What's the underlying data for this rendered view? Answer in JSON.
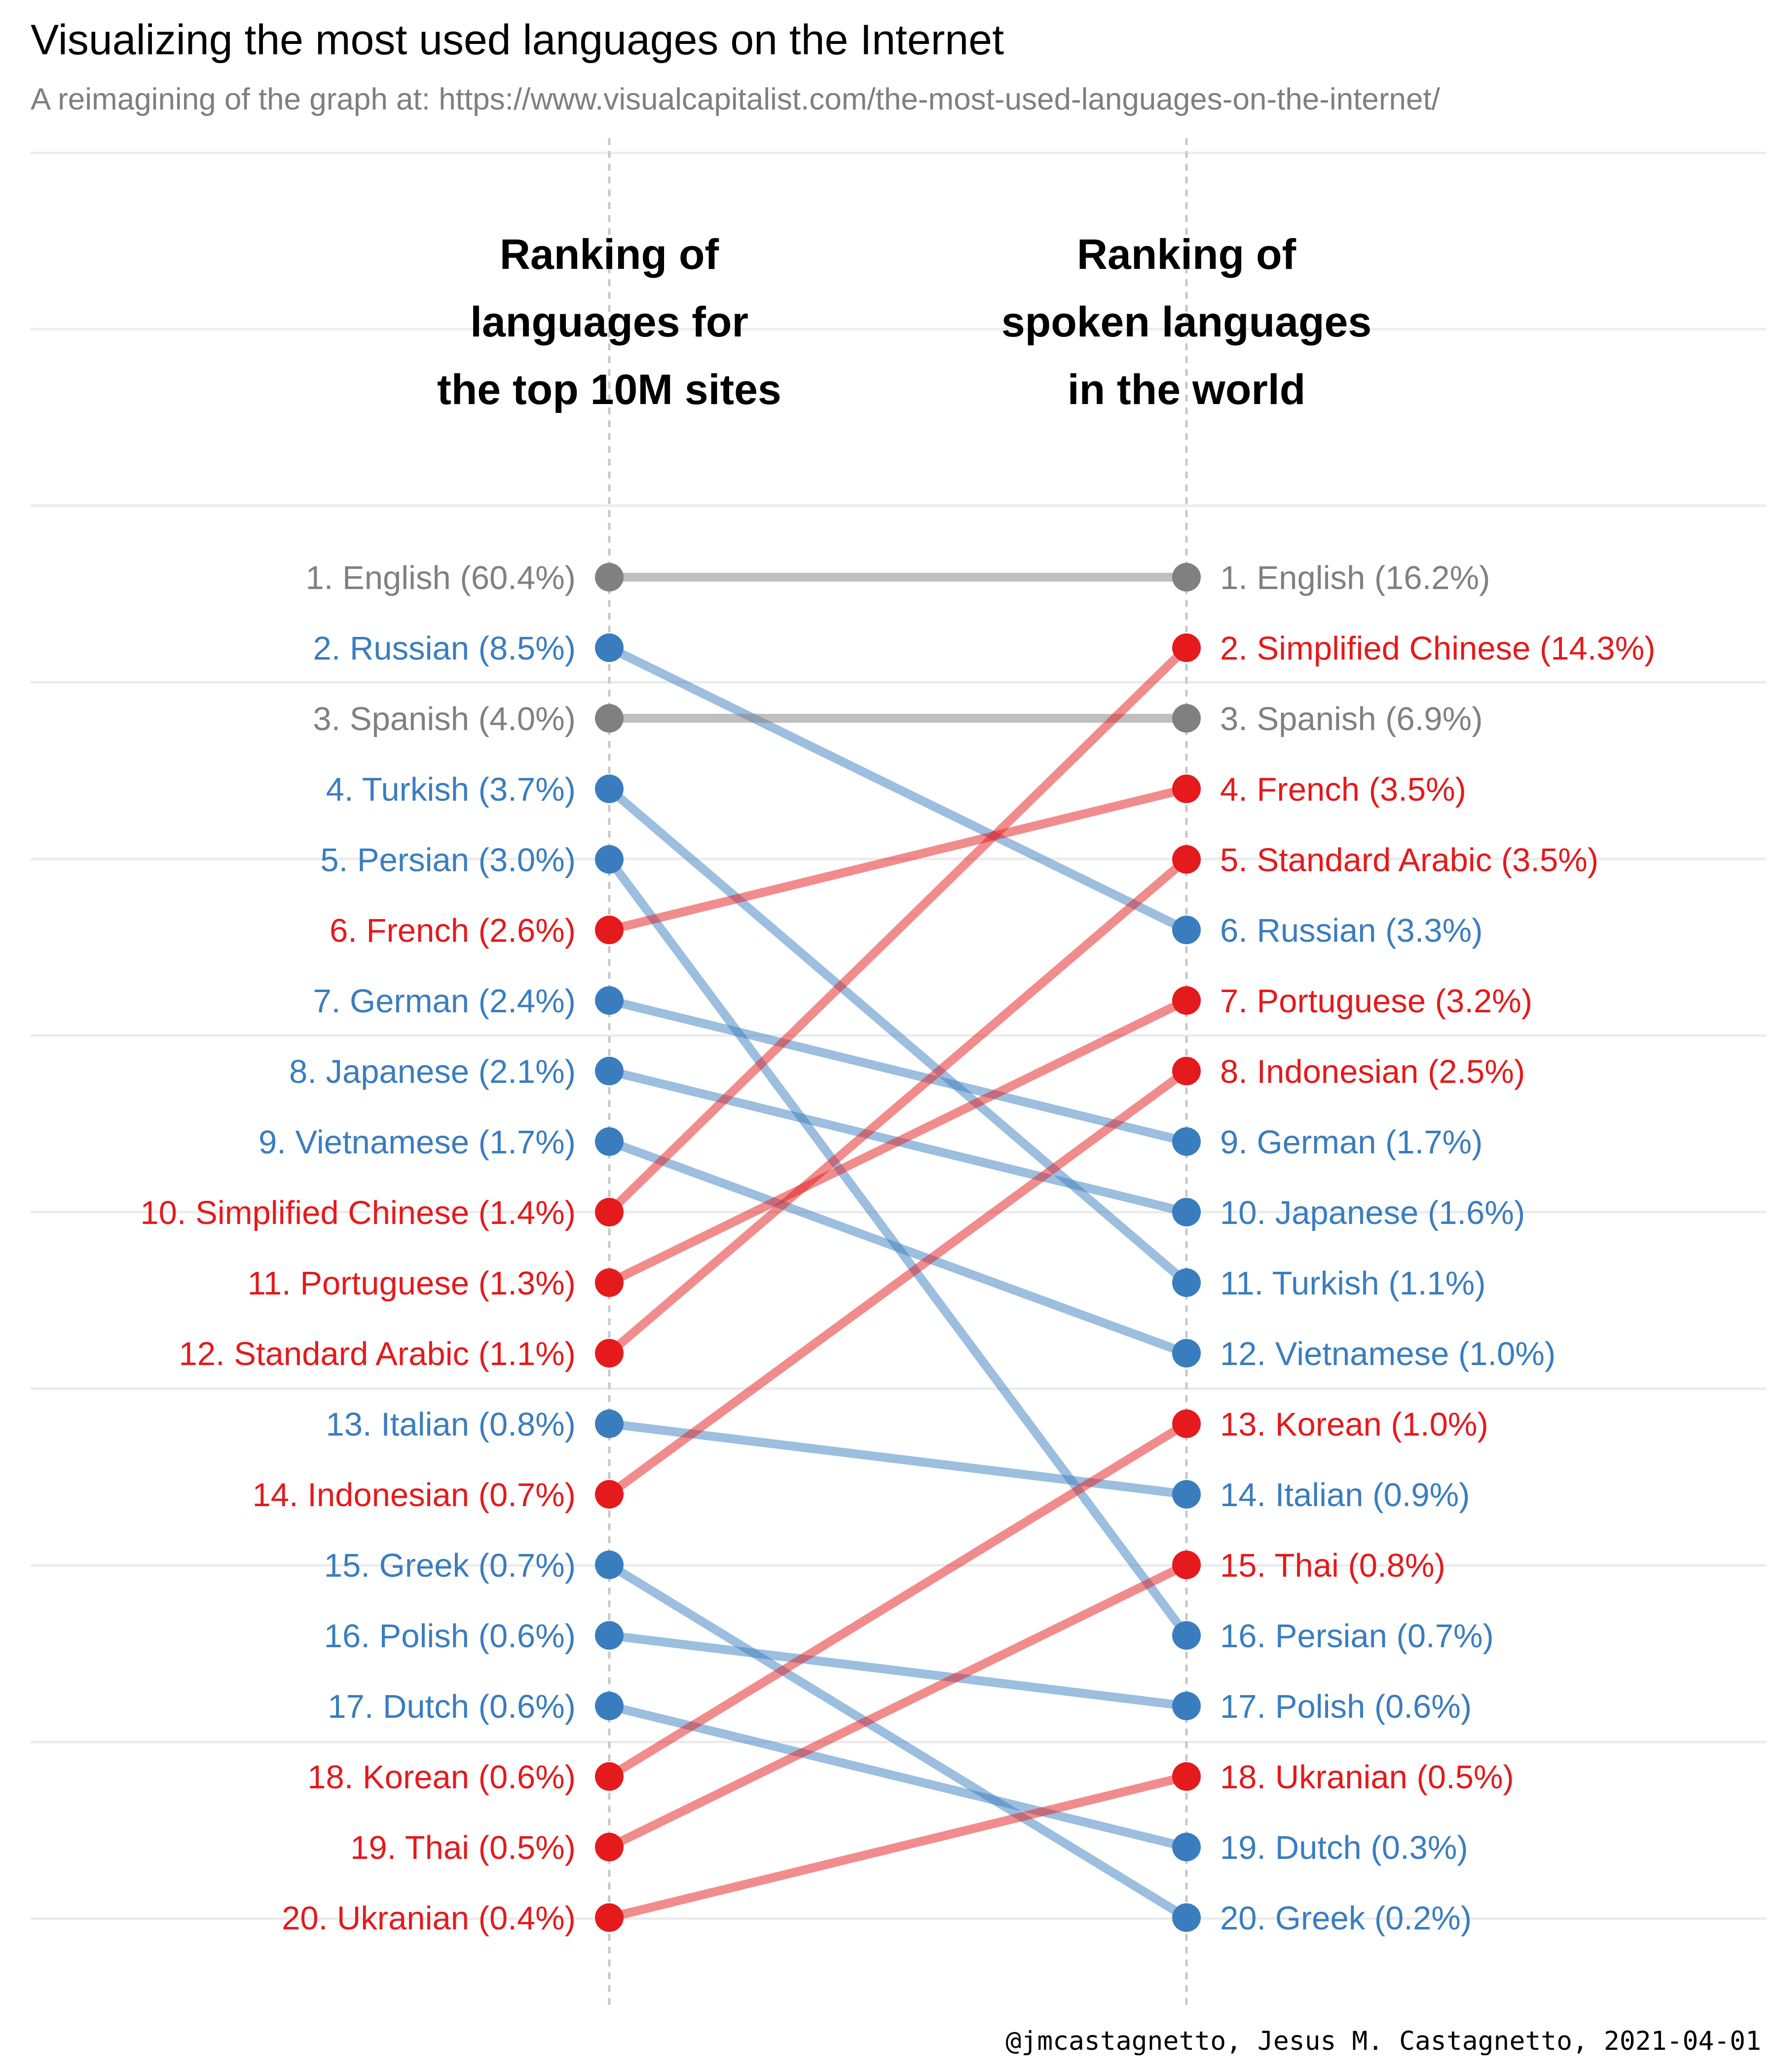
{
  "title": "Visualizing the most used languages on the Internet",
  "subtitle": "A reimagining of the graph at: https://www.visualcapitalist.com/the-most-used-languages-on-the-internet/",
  "caption": "@jmcastagnetto, Jesus M. Castagnetto, 2021-04-01",
  "colors": {
    "same": "#808080",
    "web_higher": "#3a7dbf",
    "spoken_higher": "#e41a1c",
    "grid": "#ebebeb"
  },
  "chart_data": {
    "type": "slope",
    "columns": [
      {
        "header": [
          "Ranking of",
          "languages for",
          "the top 10M sites"
        ]
      },
      {
        "header": [
          "Ranking of",
          "spoken languages",
          "in the world"
        ]
      }
    ],
    "left": [
      {
        "rank": 1,
        "language": "English",
        "pct": 60.4,
        "label": "1. English (60.4%)",
        "group": "same"
      },
      {
        "rank": 2,
        "language": "Russian",
        "pct": 8.5,
        "label": "2. Russian (8.5%)",
        "group": "web_higher"
      },
      {
        "rank": 3,
        "language": "Spanish",
        "pct": 4.0,
        "label": "3. Spanish (4.0%)",
        "group": "same"
      },
      {
        "rank": 4,
        "language": "Turkish",
        "pct": 3.7,
        "label": "4. Turkish (3.7%)",
        "group": "web_higher"
      },
      {
        "rank": 5,
        "language": "Persian",
        "pct": 3.0,
        "label": "5. Persian (3.0%)",
        "group": "web_higher"
      },
      {
        "rank": 6,
        "language": "French",
        "pct": 2.6,
        "label": "6. French (2.6%)",
        "group": "spoken_higher"
      },
      {
        "rank": 7,
        "language": "German",
        "pct": 2.4,
        "label": "7. German (2.4%)",
        "group": "web_higher"
      },
      {
        "rank": 8,
        "language": "Japanese",
        "pct": 2.1,
        "label": "8. Japanese (2.1%)",
        "group": "web_higher"
      },
      {
        "rank": 9,
        "language": "Vietnamese",
        "pct": 1.7,
        "label": "9. Vietnamese (1.7%)",
        "group": "web_higher"
      },
      {
        "rank": 10,
        "language": "Simplified Chinese",
        "pct": 1.4,
        "label": "10. Simplified Chinese (1.4%)",
        "group": "spoken_higher"
      },
      {
        "rank": 11,
        "language": "Portuguese",
        "pct": 1.3,
        "label": "11. Portuguese (1.3%)",
        "group": "spoken_higher"
      },
      {
        "rank": 12,
        "language": "Standard Arabic",
        "pct": 1.1,
        "label": "12. Standard Arabic (1.1%)",
        "group": "spoken_higher"
      },
      {
        "rank": 13,
        "language": "Italian",
        "pct": 0.8,
        "label": "13. Italian (0.8%)",
        "group": "web_higher"
      },
      {
        "rank": 14,
        "language": "Indonesian",
        "pct": 0.7,
        "label": "14. Indonesian (0.7%)",
        "group": "spoken_higher"
      },
      {
        "rank": 15,
        "language": "Greek",
        "pct": 0.7,
        "label": "15. Greek (0.7%)",
        "group": "web_higher"
      },
      {
        "rank": 16,
        "language": "Polish",
        "pct": 0.6,
        "label": "16. Polish (0.6%)",
        "group": "web_higher"
      },
      {
        "rank": 17,
        "language": "Dutch",
        "pct": 0.6,
        "label": "17. Dutch (0.6%)",
        "group": "web_higher"
      },
      {
        "rank": 18,
        "language": "Korean",
        "pct": 0.6,
        "label": "18. Korean (0.6%)",
        "group": "spoken_higher"
      },
      {
        "rank": 19,
        "language": "Thai",
        "pct": 0.5,
        "label": "19. Thai (0.5%)",
        "group": "spoken_higher"
      },
      {
        "rank": 20,
        "language": "Ukranian",
        "pct": 0.4,
        "label": "20. Ukranian (0.4%)",
        "group": "spoken_higher"
      }
    ],
    "right": [
      {
        "rank": 1,
        "language": "English",
        "pct": 16.2,
        "label": "1. English (16.2%)",
        "group": "same"
      },
      {
        "rank": 2,
        "language": "Simplified Chinese",
        "pct": 14.3,
        "label": "2. Simplified Chinese (14.3%)",
        "group": "spoken_higher"
      },
      {
        "rank": 3,
        "language": "Spanish",
        "pct": 6.9,
        "label": "3. Spanish (6.9%)",
        "group": "same"
      },
      {
        "rank": 4,
        "language": "French",
        "pct": 3.5,
        "label": "4. French (3.5%)",
        "group": "spoken_higher"
      },
      {
        "rank": 5,
        "language": "Standard Arabic",
        "pct": 3.5,
        "label": "5. Standard Arabic (3.5%)",
        "group": "spoken_higher"
      },
      {
        "rank": 6,
        "language": "Russian",
        "pct": 3.3,
        "label": "6. Russian (3.3%)",
        "group": "web_higher"
      },
      {
        "rank": 7,
        "language": "Portuguese",
        "pct": 3.2,
        "label": "7. Portuguese (3.2%)",
        "group": "spoken_higher"
      },
      {
        "rank": 8,
        "language": "Indonesian",
        "pct": 2.5,
        "label": "8. Indonesian (2.5%)",
        "group": "spoken_higher"
      },
      {
        "rank": 9,
        "language": "German",
        "pct": 1.7,
        "label": "9. German (1.7%)",
        "group": "web_higher"
      },
      {
        "rank": 10,
        "language": "Japanese",
        "pct": 1.6,
        "label": "10. Japanese (1.6%)",
        "group": "web_higher"
      },
      {
        "rank": 11,
        "language": "Turkish",
        "pct": 1.1,
        "label": "11. Turkish (1.1%)",
        "group": "web_higher"
      },
      {
        "rank": 12,
        "language": "Vietnamese",
        "pct": 1.0,
        "label": "12. Vietnamese (1.0%)",
        "group": "web_higher"
      },
      {
        "rank": 13,
        "language": "Korean",
        "pct": 1.0,
        "label": "13. Korean (1.0%)",
        "group": "spoken_higher"
      },
      {
        "rank": 14,
        "language": "Italian",
        "pct": 0.9,
        "label": "14. Italian (0.9%)",
        "group": "web_higher"
      },
      {
        "rank": 15,
        "language": "Thai",
        "pct": 0.8,
        "label": "15. Thai (0.8%)",
        "group": "spoken_higher"
      },
      {
        "rank": 16,
        "language": "Persian",
        "pct": 0.7,
        "label": "16. Persian (0.7%)",
        "group": "web_higher"
      },
      {
        "rank": 17,
        "language": "Polish",
        "pct": 0.6,
        "label": "17. Polish (0.6%)",
        "group": "web_higher"
      },
      {
        "rank": 18,
        "language": "Ukranian",
        "pct": 0.5,
        "label": "18. Ukranian (0.5%)",
        "group": "spoken_higher"
      },
      {
        "rank": 19,
        "language": "Dutch",
        "pct": 0.3,
        "label": "19. Dutch (0.3%)",
        "group": "web_higher"
      },
      {
        "rank": 20,
        "language": "Greek",
        "pct": 0.2,
        "label": "20. Greek (0.2%)",
        "group": "web_higher"
      }
    ],
    "legend": "none",
    "grid": true
  }
}
